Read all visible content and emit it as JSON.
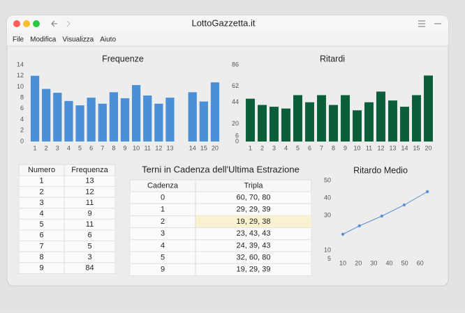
{
  "window": {
    "title": "LottoGazzetta.it"
  },
  "menu": [
    "File",
    "Modifica",
    "Visualizza",
    "Aiuto"
  ],
  "chart_data": [
    {
      "type": "bar",
      "title": "Frequenze",
      "categories": [
        "1",
        "2",
        "3",
        "4",
        "5",
        "6",
        "7",
        "8",
        "9",
        "10",
        "11",
        "12",
        "13",
        null,
        "14",
        "15",
        "20"
      ],
      "values": [
        12,
        9.6,
        8.9,
        7.4,
        6.6,
        8,
        6.9,
        9,
        7.9,
        10.3,
        8.4,
        6.9,
        8,
        null,
        9,
        7.3,
        10.8
      ],
      "color": "#4a90d9",
      "ylim": [
        0,
        14
      ],
      "yticks": [
        0,
        2,
        4,
        6,
        8,
        10,
        12,
        14
      ]
    },
    {
      "type": "bar",
      "title": "Ritardi",
      "categories": [
        "1",
        "2",
        "3",
        "4",
        "5",
        "6",
        "7",
        "8",
        "9",
        "10",
        "11",
        "12",
        "13",
        "14",
        "15",
        "20"
      ],
      "values": [
        48,
        41,
        39,
        37,
        52,
        44,
        52,
        41,
        52,
        35,
        44,
        56,
        46,
        39,
        52,
        74
      ],
      "color": "#0b5e3a",
      "ylim": [
        0,
        86
      ],
      "yticks": [
        0,
        6,
        20,
        44,
        62,
        86
      ]
    },
    {
      "type": "line",
      "title": "Ritardo Medio",
      "x": [
        10,
        20.7,
        35.2,
        49.7,
        64.7
      ],
      "values": [
        19.2,
        24,
        29.6,
        36,
        43.6
      ],
      "color": "#5b8fd6",
      "xlim": [
        5,
        66
      ],
      "xticks": [
        10,
        20,
        30,
        40,
        50,
        60
      ],
      "ylim": [
        0,
        50
      ],
      "yticks": [
        5,
        10,
        30,
        40,
        50
      ]
    }
  ],
  "tables": [
    {
      "columns": [
        "Numero",
        "Frequenza"
      ],
      "rows": [
        [
          "1",
          "13"
        ],
        [
          "2",
          "12"
        ],
        [
          "3",
          "11"
        ],
        [
          "4",
          "9"
        ],
        [
          "5",
          "11"
        ],
        [
          "6",
          "6"
        ],
        [
          "7",
          "5"
        ],
        [
          "8",
          "3"
        ],
        [
          "9",
          "84"
        ]
      ]
    },
    {
      "title": "Terni in Cadenza dell'Ultima Estrazione",
      "columns": [
        "Cadenza",
        "Tripla"
      ],
      "highlight_row": 2,
      "rows": [
        [
          "0",
          "60, 70, 80"
        ],
        [
          "1",
          "29, 29, 39"
        ],
        [
          "2",
          "19, 29, 38"
        ],
        [
          "3",
          "23, 43, 43"
        ],
        [
          "4",
          "24, 39, 43"
        ],
        [
          "5",
          "32, 60, 80"
        ],
        [
          "9",
          "19, 29, 39"
        ]
      ]
    }
  ]
}
